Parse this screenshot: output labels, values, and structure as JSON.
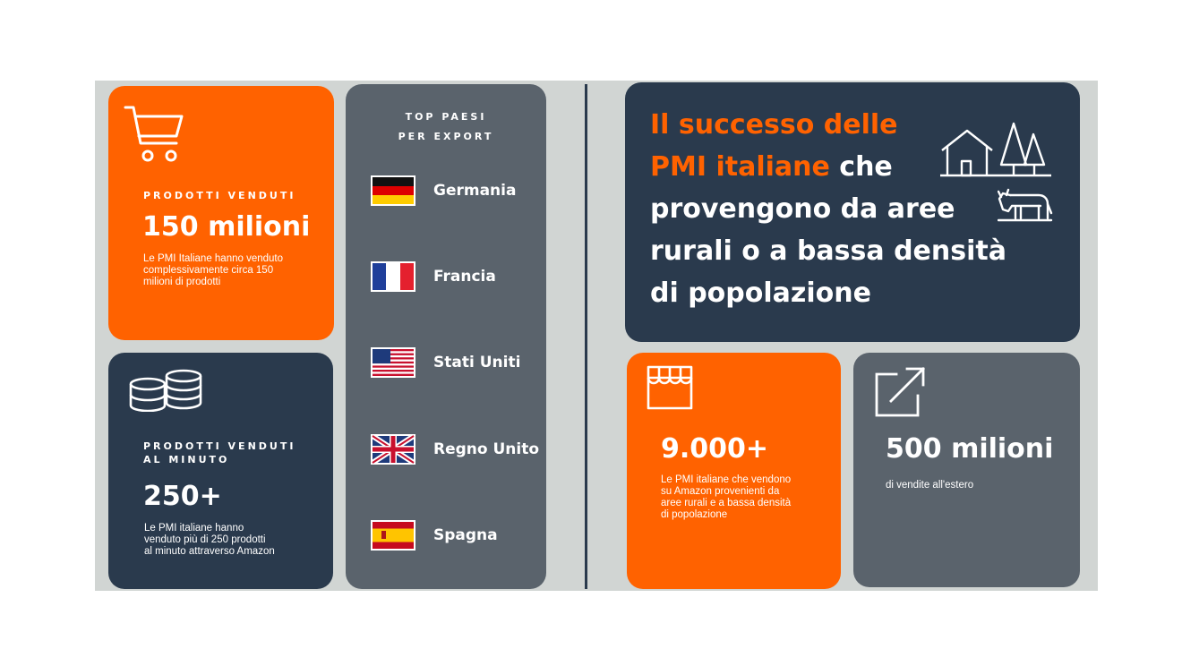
{
  "colors": {
    "orange": "#ff6200",
    "navy": "#2a3a4d",
    "slate": "#5a636c",
    "panel": "#d1d5d3"
  },
  "card_products": {
    "icon": "shopping-cart-icon",
    "label": "PRODOTTI VENDUTI",
    "value": "150 milioni",
    "description_lines": [
      "Le PMI Italiane hanno venduto",
      "complessivamente circa 150",
      "milioni di prodotti"
    ]
  },
  "card_per_minute": {
    "icon": "coins-stack-icon",
    "label_lines": [
      "PRODOTTI VENDUTI",
      "AL MINUTO"
    ],
    "value": "250+",
    "description_lines": [
      "Le PMI italiane hanno",
      "venduto più di 250 prodotti",
      "al minuto attraverso Amazon"
    ]
  },
  "top_countries": {
    "title_lines": [
      "TOP PAESI",
      "PER EXPORT"
    ],
    "items": [
      {
        "name": "Germania",
        "flag": "germany-flag-icon"
      },
      {
        "name": "Francia",
        "flag": "france-flag-icon"
      },
      {
        "name": "Stati Uniti",
        "flag": "usa-flag-icon"
      },
      {
        "name": "Regno Unito",
        "flag": "uk-flag-icon"
      },
      {
        "name": "Spagna",
        "flag": "spain-flag-icon"
      }
    ]
  },
  "headline": {
    "highlight_1": "Il successo delle",
    "highlight_2": "PMI italiane",
    "rest_1": " che",
    "rest_lines": [
      "provengono da aree",
      "rurali o a bassa densità",
      "di popolazione"
    ],
    "icons": [
      "house-trees-icon",
      "cow-icon"
    ]
  },
  "card_rural": {
    "icon": "storefront-icon",
    "value": "9.000+",
    "description_lines": [
      "Le PMI italiane che vendono",
      "su Amazon provenienti da",
      "aree rurali e a bassa densità",
      "di popolazione"
    ]
  },
  "card_abroad": {
    "icon": "external-link-icon",
    "value": "500 milioni",
    "description": "di vendite all'estero"
  }
}
